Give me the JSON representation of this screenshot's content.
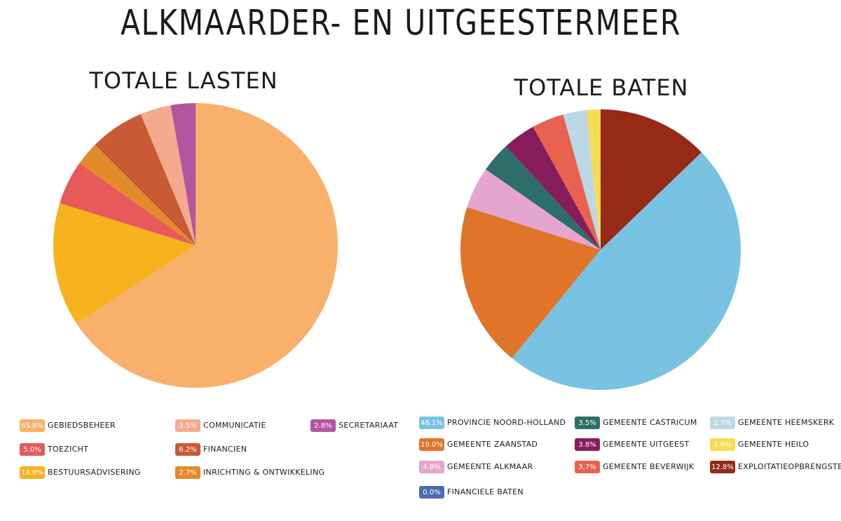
{
  "title": "ALKMAARDER- EN UITGEESTERMEER",
  "chart_data": [
    {
      "type": "pie",
      "title": "TOTALE LASTEN",
      "categories": [
        "Gebiedsbeheer",
        "Bestuursadvisering",
        "Toezicht",
        "Inrichting & Ontwikkeling",
        "Financien",
        "Communicatie",
        "Secretariaat"
      ],
      "values": [
        65.8,
        14.0,
        5.0,
        2.7,
        6.2,
        3.5,
        2.8
      ],
      "value_labels": [
        "65.8%",
        "14.0%",
        "5.0%",
        "2.7%",
        "6.2%",
        "3.5%",
        "2.8%"
      ],
      "colors": [
        "#f8b06a",
        "#f7b21e",
        "#e85a5a",
        "#e38a2a",
        "#c85a34",
        "#f5a98e",
        "#b455a0"
      ]
    },
    {
      "type": "pie",
      "title": "TOTALE BATEN",
      "categories": [
        "Exploitatieopbrengsten",
        "Provincie Noord-Holland",
        "Gemeente Zaanstad",
        "Gemeente Alkmaar",
        "Financiele baten",
        "Gemeente Castricum",
        "Gemeente Uitgeest",
        "Gemeente Beverwijk",
        "Gemeente Heemskerk",
        "Gemeente Heilo"
      ],
      "values": [
        12.8,
        48.1,
        19.0,
        4.8,
        0.0,
        3.5,
        3.8,
        3.7,
        2.7,
        1.6
      ],
      "value_labels": [
        "12.8%",
        "48.1%",
        "19.0%",
        "4.8%",
        "0.0%",
        "3.5%",
        "3.8%",
        "3.7%",
        "2.7%",
        "1.6%"
      ],
      "colors": [
        "#962a16",
        "#78c2e2",
        "#e0752a",
        "#e4a5cf",
        "#4a6bb5",
        "#2e6e6a",
        "#871c5c",
        "#e8624f",
        "#bcd8e6",
        "#f7dc50"
      ]
    }
  ]
}
